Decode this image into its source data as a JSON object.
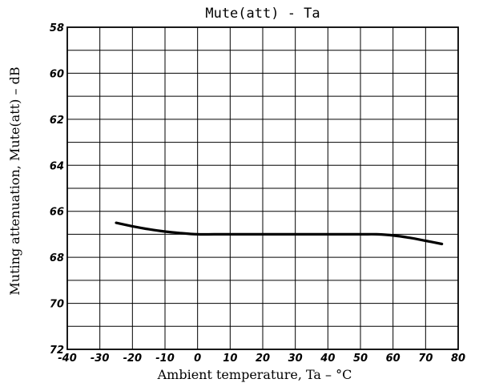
{
  "chart_data": {
    "type": "line",
    "title": "Mute(att) - Ta",
    "xlabel": "Ambient temperature, Ta  –  °C",
    "ylabel": "Muting attenuation, Mute(att)  –  dB",
    "xlim": [
      -40,
      80
    ],
    "ylim": [
      58,
      72
    ],
    "y_inverted": true,
    "grid": true,
    "x_ticks": [
      -40,
      -30,
      -20,
      -10,
      0,
      10,
      20,
      30,
      40,
      50,
      60,
      70,
      80
    ],
    "x_tick_labels": [
      "-40",
      "-30",
      "-20",
      "-10",
      "0",
      "10",
      "20",
      "30",
      "40",
      "50",
      "60",
      "70",
      "80"
    ],
    "y_ticks": [
      58,
      60,
      62,
      64,
      66,
      68,
      70,
      72
    ],
    "y_tick_labels": [
      "58",
      "60",
      "62",
      "64",
      "66",
      "68",
      "70",
      "72"
    ],
    "series": [
      {
        "x": [
          -25,
          -20,
          -15,
          -10,
          -5,
          0,
          5,
          10,
          20,
          30,
          40,
          50,
          55,
          60,
          65,
          70,
          75
        ],
        "values": [
          66.5,
          66.65,
          66.78,
          66.88,
          66.95,
          67.0,
          67.0,
          67.0,
          67.0,
          67.0,
          67.0,
          67.0,
          67.0,
          67.05,
          67.15,
          67.28,
          67.42
        ]
      }
    ]
  }
}
